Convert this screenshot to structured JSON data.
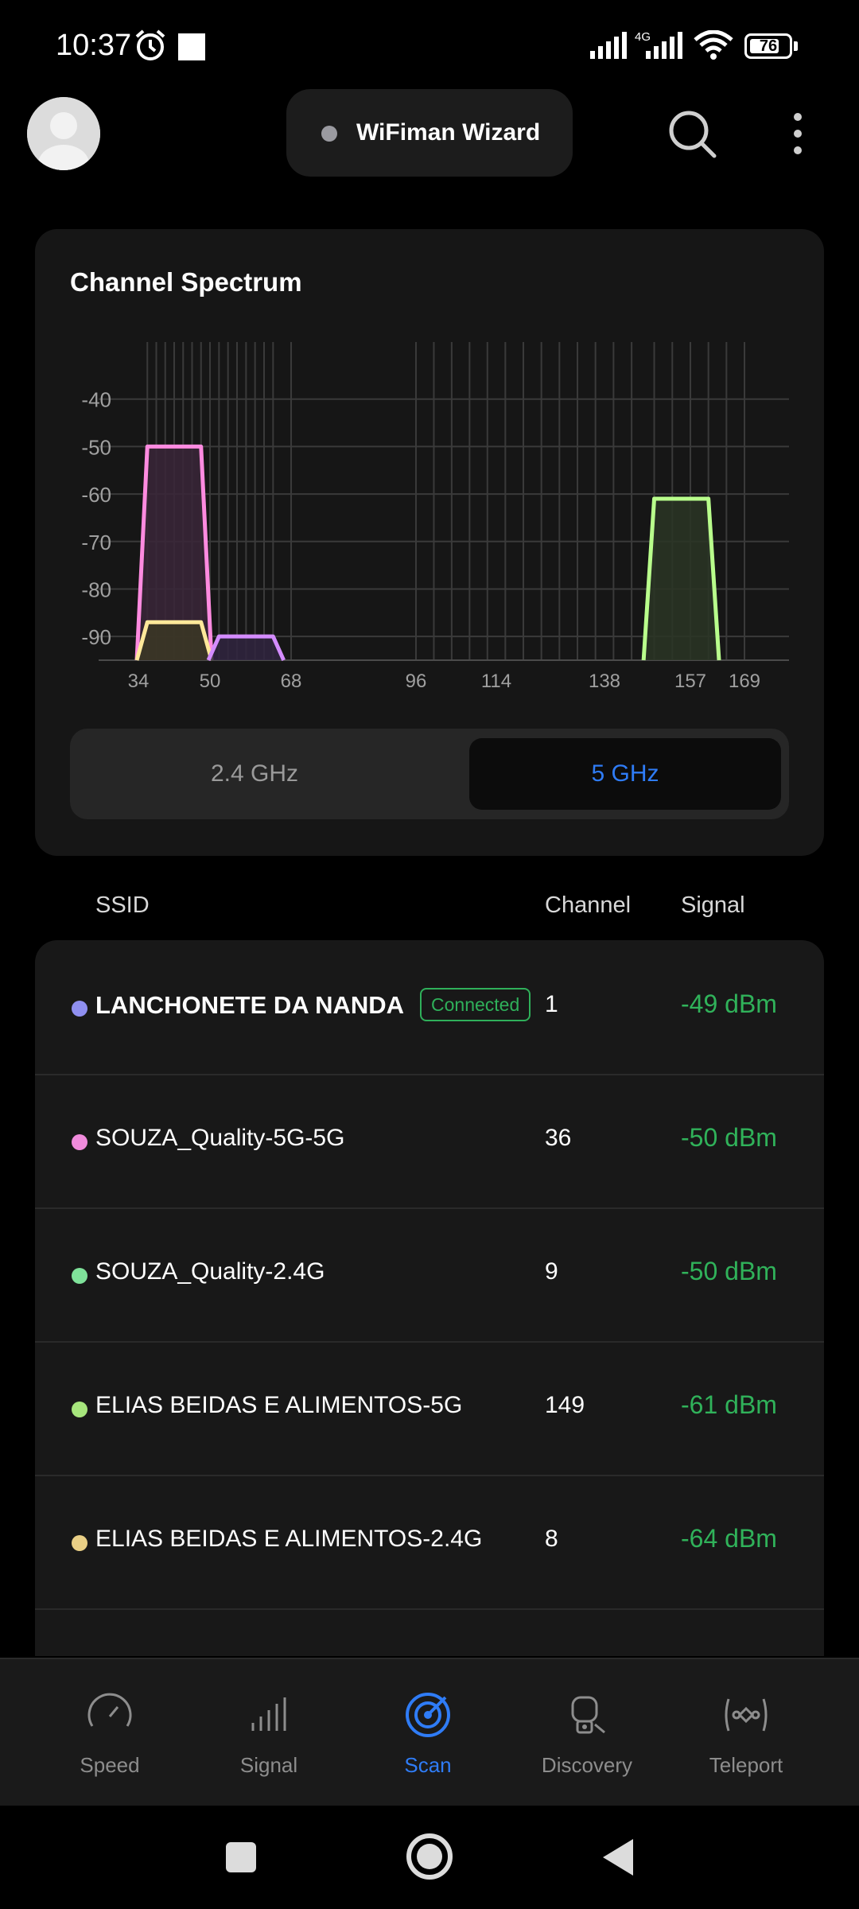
{
  "status_bar": {
    "time": "10:37",
    "network": "4G",
    "battery": "76",
    "battery_level": 0.76
  },
  "header": {
    "title": "WiFiman Wizard"
  },
  "spectrum": {
    "title": "Channel Spectrum",
    "bands": [
      "2.4 GHz",
      "5 GHz"
    ],
    "selected_band": "5 GHz"
  },
  "chart_data": {
    "type": "area",
    "title": "Channel Spectrum",
    "xlabel": "",
    "ylabel": "",
    "y_ticks": [
      "-40",
      "-50",
      "-60",
      "-70",
      "-80",
      "-90"
    ],
    "x_ticks": [
      "34",
      "50",
      "68",
      "96",
      "114",
      "138",
      "157",
      "169"
    ],
    "ylim": [
      -95,
      -30
    ],
    "grid": true,
    "series": [
      {
        "color": "#ff8be0",
        "channel_start": 36,
        "channel_end": 48,
        "peak": -50,
        "fill": "#3a2638"
      },
      {
        "color": "#ffe89a",
        "channel_start": 36,
        "channel_end": 48,
        "peak": -87,
        "fill": "#3b3724"
      },
      {
        "color": "#d48cff",
        "channel_start": 52,
        "channel_end": 64,
        "peak": -90,
        "fill": "#302540"
      },
      {
        "color": "#b9ff8c",
        "channel_start": 149,
        "channel_end": 161,
        "peak": -61,
        "fill": "#2a3525"
      }
    ]
  },
  "list": {
    "headers": {
      "ssid": "SSID",
      "channel": "Channel",
      "signal": "Signal"
    },
    "rows": [
      {
        "ssid": "LANCHONETE DA NANDA",
        "connected": "Connected",
        "channel": "1",
        "signal": "-49 dBm",
        "dot": "#8f8ff0"
      },
      {
        "ssid": "SOUZA_Quality-5G-5G",
        "channel": "36",
        "signal": "-50 dBm",
        "dot": "#f08bdc"
      },
      {
        "ssid": "SOUZA_Quality-2.4G",
        "channel": "9",
        "signal": "-50 dBm",
        "dot": "#7fe29a"
      },
      {
        "ssid": "ELIAS BEIDAS E ALIMENTOS-5G",
        "channel": "149",
        "signal": "-61 dBm",
        "dot": "#a6e57c"
      },
      {
        "ssid": "ELIAS BEIDAS E ALIMENTOS-2.4G",
        "channel": "8",
        "signal": "-64 dBm",
        "dot": "#e9cf86"
      }
    ]
  },
  "nav": {
    "items": [
      "Speed",
      "Signal",
      "Scan",
      "Discovery",
      "Teleport"
    ],
    "active": "Scan",
    "active_color": "#2f7cf6"
  }
}
